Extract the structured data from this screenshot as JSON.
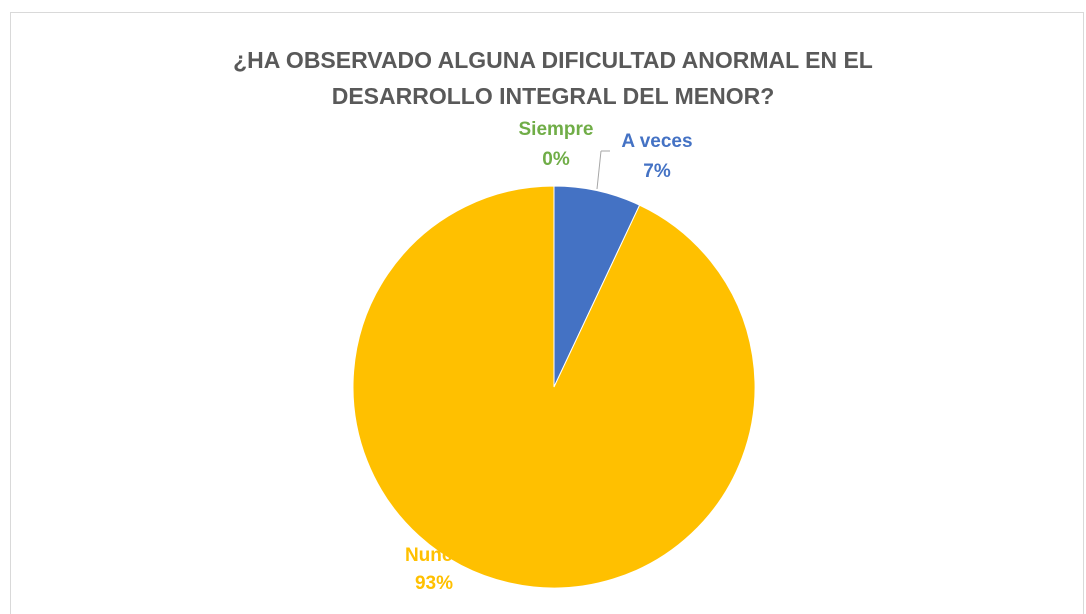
{
  "chart_data": {
    "type": "pie",
    "title": "¿HA OBSERVADO ALGUNA DIFICULTAD ANORMAL EN EL DESARROLLO INTEGRAL DEL MENOR?",
    "categories": [
      "Siempre",
      "A veces",
      "Nunca"
    ],
    "values": [
      0,
      7,
      93
    ],
    "value_labels": [
      "0%",
      "7%",
      "93%"
    ],
    "colors": [
      "#70ad47",
      "#4472c4",
      "#ffc000"
    ]
  }
}
